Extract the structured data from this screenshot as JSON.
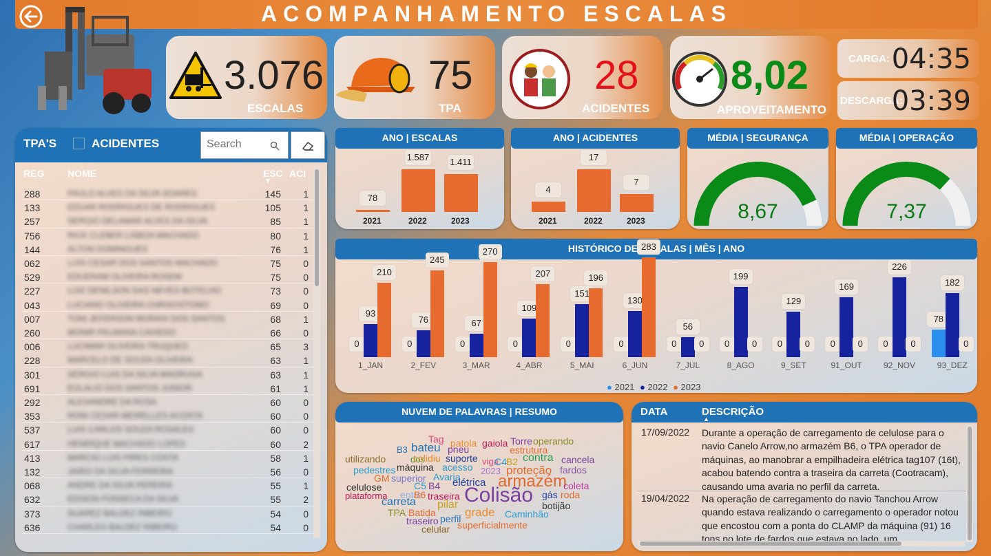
{
  "title": "ACOMPANHAMENTO ESCALAS",
  "kpis": {
    "escalas": {
      "value": "3.076",
      "label": "ESCALAS"
    },
    "tpa": {
      "value": "75",
      "label": "TPA"
    },
    "acidentes": {
      "value": "28",
      "label": "ACIDENTES"
    },
    "aproveitamento": {
      "value": "8,02",
      "label": "APROVEITAMENTO"
    }
  },
  "times": {
    "carga": {
      "label": "CARGA:",
      "value": "04:35"
    },
    "descarga": {
      "label": "DESCARGA:",
      "value": "03:39"
    }
  },
  "colors": {
    "blue": "#1f72b6",
    "orange": "#e76b2e",
    "navy": "#17239e",
    "lightblue": "#2b8ff0",
    "green": "#0a8a16"
  },
  "tpa_table": {
    "title": "TPA'S",
    "checkbox_label": "ACIDENTES",
    "search_placeholder": "Search",
    "headers": {
      "reg": "REG",
      "nome": "NOME",
      "esc": "ESC",
      "aci": "ACI"
    },
    "rows": [
      {
        "reg": "288",
        "nome": "PAULO ALVES DA SILVA SOARES",
        "esc": "145",
        "aci": "1"
      },
      {
        "reg": "133",
        "nome": "EDUAR RODRIGUES DE RODRIGUES",
        "esc": "105",
        "aci": "1"
      },
      {
        "reg": "257",
        "nome": "SERGIO DELAMAR ALVES DA SILVA",
        "esc": "85",
        "aci": "1"
      },
      {
        "reg": "756",
        "nome": "RICK CLEBER LISBOA MACHADO",
        "esc": "80",
        "aci": "1"
      },
      {
        "reg": "144",
        "nome": "ALTON DOMINGUES",
        "esc": "76",
        "aci": "1"
      },
      {
        "reg": "062",
        "nome": "LUIS CESAR DOS SANTOS MACHADO",
        "esc": "75",
        "aci": "0"
      },
      {
        "reg": "529",
        "nome": "EDUERAM OLIVEIRA ROSEM",
        "esc": "75",
        "aci": "0"
      },
      {
        "reg": "227",
        "nome": "LUIZ DENILSON DAS NEVES BOTELHO",
        "esc": "73",
        "aci": "0"
      },
      {
        "reg": "043",
        "nome": "LUCIANO OLIVEIRA CHRISOSTOMO",
        "esc": "69",
        "aci": "0"
      },
      {
        "reg": "007",
        "nome": "TONI JEFERSON MORAIS DOS SANTOS",
        "esc": "68",
        "aci": "1"
      },
      {
        "reg": "260",
        "nome": "MONIR PELMANA CAIXEDO",
        "esc": "66",
        "aci": "0"
      },
      {
        "reg": "006",
        "nome": "LUCIMAR OLIVEIRA TRUQUEO",
        "esc": "65",
        "aci": "3"
      },
      {
        "reg": "228",
        "nome": "MARCELO DE SOUZA OLIVEIRA",
        "esc": "63",
        "aci": "1"
      },
      {
        "reg": "301",
        "nome": "SERGIO LUIS DA SILVA MADRUGA",
        "esc": "63",
        "aci": "1"
      },
      {
        "reg": "691",
        "nome": "EULALIO DOS SANTOS JUNIOR",
        "esc": "61",
        "aci": "1"
      },
      {
        "reg": "292",
        "nome": "ALEXANDRE DA ROSA",
        "esc": "60",
        "aci": "0"
      },
      {
        "reg": "353",
        "nome": "RONI CESAR MEIRELLES ACOSTA",
        "esc": "60",
        "aci": "0"
      },
      {
        "reg": "537",
        "nome": "LUIS CARLOS SOUZA ROSALES",
        "esc": "60",
        "aci": "0"
      },
      {
        "reg": "617",
        "nome": "HENRIQUE MACHADO LOPES",
        "esc": "60",
        "aci": "2"
      },
      {
        "reg": "413",
        "nome": "MARCIO LUIS PIRES COSTA",
        "esc": "58",
        "aci": "1"
      },
      {
        "reg": "132",
        "nome": "JAIRO DA SILVA FERREIRA",
        "esc": "56",
        "aci": "0"
      },
      {
        "reg": "068",
        "nome": "ANDRE DA SILVA PEREIRA",
        "esc": "55",
        "aci": "1"
      },
      {
        "reg": "632",
        "nome": "EDISON FONSECA DA SILVA",
        "esc": "55",
        "aci": "2"
      },
      {
        "reg": "373",
        "nome": "SUAREZ BALDEZ RIBEIRO",
        "esc": "54",
        "aci": "0"
      },
      {
        "reg": "636",
        "nome": "CHARLES BALDEZ RIBEIRO",
        "esc": "54",
        "aci": "0"
      }
    ]
  },
  "chart_data": [
    {
      "type": "bar",
      "title": "ANO | ESCALAS",
      "categories": [
        "2021",
        "2022",
        "2023"
      ],
      "values": [
        78,
        1587,
        1411
      ],
      "value_labels": [
        "78",
        "1.587",
        "1.411"
      ]
    },
    {
      "type": "bar",
      "title": "ANO | ACIDENTES",
      "categories": [
        "2021",
        "2022",
        "2023"
      ],
      "values": [
        4,
        17,
        7
      ],
      "value_labels": [
        "4",
        "17",
        "7"
      ]
    },
    {
      "type": "gauge",
      "title": "MÉDIA | SEGURANÇA",
      "value": 8.67,
      "value_label": "8,67",
      "min": 0,
      "max": 10
    },
    {
      "type": "gauge",
      "title": "MÉDIA | OPERAÇÃO",
      "value": 7.37,
      "value_label": "7,37",
      "min": 0,
      "max": 10
    },
    {
      "type": "bar",
      "title": "HISTÓRICO DE ESCALAS | MÊS | ANO",
      "categories": [
        "1_JAN",
        "2_FEV",
        "3_MAR",
        "4_ABR",
        "5_MAI",
        "6_JUN",
        "7_JUL",
        "8_AGO",
        "9_SET",
        "91_OUT",
        "92_NOV",
        "93_DEZ"
      ],
      "series": [
        {
          "name": "2021",
          "values": [
            0,
            0,
            0,
            0,
            0,
            0,
            0,
            0,
            0,
            0,
            0,
            78
          ]
        },
        {
          "name": "2022",
          "values": [
            93,
            76,
            67,
            109,
            151,
            130,
            56,
            199,
            129,
            169,
            226,
            182
          ]
        },
        {
          "name": "2023",
          "values": [
            210,
            245,
            270,
            207,
            196,
            283,
            0,
            0,
            0,
            0,
            0,
            0
          ]
        }
      ],
      "legend": [
        "2021",
        "2022",
        "2023"
      ]
    }
  ],
  "wordcloud": {
    "title": "NUVEM DE PALAVRAS | RESUMO",
    "words": [
      {
        "t": "Tag",
        "c": "#e0457b"
      },
      {
        "t": "patola",
        "c": "#e98a2c"
      },
      {
        "t": "gaiola",
        "c": "#c2185b"
      },
      {
        "t": "Torre",
        "c": "#7b3fa0"
      },
      {
        "t": "operando",
        "c": "#8a8a2a"
      },
      {
        "t": "B3",
        "c": "#1f72b6"
      },
      {
        "t": "bateu",
        "c": "#1f72b6"
      },
      {
        "t": "pneu",
        "c": "#7b3fa0"
      },
      {
        "t": "estrutura",
        "c": "#e06a2c"
      },
      {
        "t": "dos",
        "c": "#3a9a3a"
      },
      {
        "t": "colidiu",
        "c": "#e98a2c"
      },
      {
        "t": "suporte",
        "c": "#1f3fa0"
      },
      {
        "t": "viga",
        "c": "#e0457b"
      },
      {
        "t": "utilizando",
        "c": "#8a6a2a"
      },
      {
        "t": "C4",
        "c": "#2a9ad0"
      },
      {
        "t": "B2",
        "c": "#c9a01a"
      },
      {
        "t": "contra",
        "c": "#2a9a4a"
      },
      {
        "t": "cancela",
        "c": "#7b3fa0"
      },
      {
        "t": "pedestres",
        "c": "#2a9ad0"
      },
      {
        "t": "máquina",
        "c": "#333"
      },
      {
        "t": "acesso",
        "c": "#2a9ad0"
      },
      {
        "t": "2023",
        "c": "#b07ad0"
      },
      {
        "t": "proteção",
        "c": "#e06a2c"
      },
      {
        "t": "fardos",
        "c": "#8a5aa0"
      },
      {
        "t": "GM",
        "c": "#e06a2c"
      },
      {
        "t": "superior",
        "c": "#7b7bd0"
      },
      {
        "t": "Avaria",
        "c": "#2a9ad0"
      },
      {
        "t": "celulose",
        "c": "#333"
      },
      {
        "t": "C5",
        "c": "#2a9ad0"
      },
      {
        "t": "B4",
        "c": "#7b3fa0"
      },
      {
        "t": "elétrica",
        "c": "#1f3fa0"
      },
      {
        "t": "armazém",
        "c": "#e06a2c"
      },
      {
        "t": "coleta",
        "c": "#c03aa0"
      },
      {
        "t": "plataforma",
        "c": "#c2185b"
      },
      {
        "t": "entre",
        "c": "#8ab0e0"
      },
      {
        "t": "B6",
        "c": "#e06a2c"
      },
      {
        "t": "traseira",
        "c": "#c2185b"
      },
      {
        "t": "Colisão",
        "c": "#7b3fa0"
      },
      {
        "t": "gás",
        "c": "#1f3fa0"
      },
      {
        "t": "roda",
        "c": "#e06a2c"
      },
      {
        "t": "carreta",
        "c": "#1f72b6"
      },
      {
        "t": "pilar",
        "c": "#c9a01a"
      },
      {
        "t": "botijão",
        "c": "#333"
      },
      {
        "t": "TPA",
        "c": "#8a8a2a"
      },
      {
        "t": "Batida",
        "c": "#e06a2c"
      },
      {
        "t": "grade",
        "c": "#e98a2c"
      },
      {
        "t": "Caminhão",
        "c": "#2a9ad0"
      },
      {
        "t": "traseiro",
        "c": "#7b3fa0"
      },
      {
        "t": "perfil",
        "c": "#1f72b6"
      },
      {
        "t": "superficialmente",
        "c": "#e06a2c"
      },
      {
        "t": "celular",
        "c": "#8a6a2a"
      }
    ]
  },
  "desc_table": {
    "headers": {
      "data": "DATA",
      "desc": "DESCRIÇÃO"
    },
    "rows": [
      {
        "date": "17/09/2022",
        "text": "Durante a operação de carregamento de celulose para o navio Canelo Arrow,no armazém B6, o TPA operador de máquinas, ao manobrar a empilhadeira elétrica tag107 (16t), acabou batendo contra a traseira da carreta (Cootracam), causando uma avaria no perfil da carreta."
      },
      {
        "date": "19/04/2022",
        "text": "Na operação de carregamento do navio Tanchou Arrow quando estava realizando o carregamento o operador notou que encostou com a ponta do CLAMP da máquina (91) 16 tons no lote de fardos que estava no lado, um"
      }
    ]
  }
}
